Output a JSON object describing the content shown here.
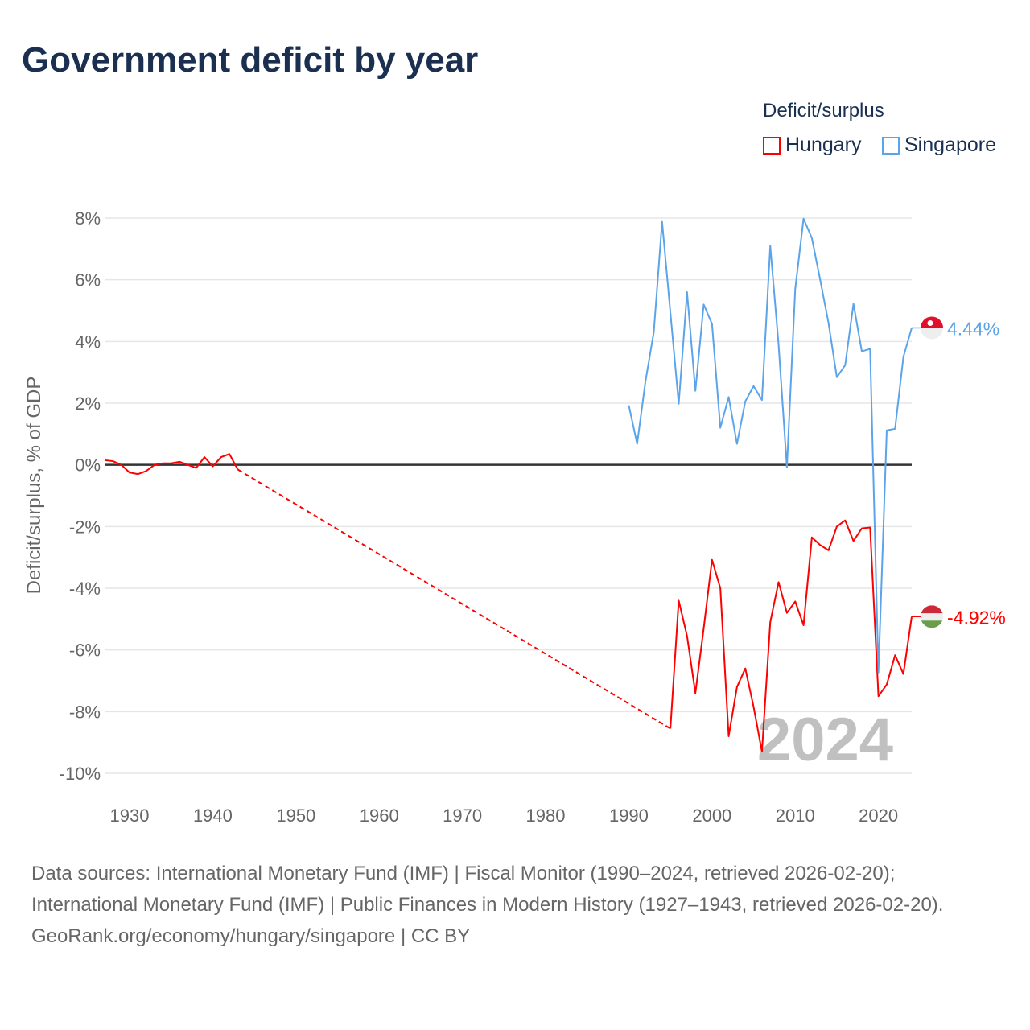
{
  "title": "Government deficit by year",
  "legend": {
    "title": "Deficit/surplus",
    "items": [
      {
        "name": "Hungary",
        "color": "#ff0000"
      },
      {
        "name": "Singapore",
        "color": "#5ba4ea"
      }
    ]
  },
  "chart_data": {
    "type": "line",
    "title": "Government deficit by year",
    "ylabel": "Deficit/surplus, % of GDP",
    "xlabel": "",
    "xlim": [
      1927,
      2024
    ],
    "ylim": [
      -10,
      8
    ],
    "xticks": [
      1930,
      1940,
      1950,
      1960,
      1970,
      1980,
      1990,
      2000,
      2010,
      2020
    ],
    "yticks": [
      8,
      6,
      4,
      2,
      0,
      -2,
      -4,
      -6,
      -8,
      -10
    ],
    "ytick_labels": [
      "8%",
      "6%",
      "4%",
      "2%",
      "0%",
      "-2%",
      "-4%",
      "-6%",
      "-8%",
      "-10%"
    ],
    "grid": true,
    "legend_position": "top-right",
    "year_watermark": "2024",
    "series": [
      {
        "name": "Hungary",
        "color": "#ff0000",
        "end_label": "-4.92%",
        "segments": [
          {
            "x": [
              1927,
              1928,
              1929,
              1930,
              1931,
              1932,
              1933,
              1934,
              1935,
              1936,
              1937,
              1938,
              1939,
              1940,
              1941,
              1942,
              1943
            ],
            "y": [
              0.15,
              0.12,
              0.0,
              -0.25,
              -0.3,
              -0.2,
              0.0,
              0.05,
              0.05,
              0.1,
              0.0,
              -0.1,
              0.25,
              -0.05,
              0.25,
              0.35,
              -0.15
            ]
          },
          {
            "x": [
              1995,
              1996,
              1997,
              1998,
              1999,
              2000,
              2001,
              2002,
              2003,
              2004,
              2005,
              2006,
              2007,
              2008,
              2009,
              2010,
              2011,
              2012,
              2013,
              2014,
              2015,
              2016,
              2017,
              2018,
              2019,
              2020,
              2021,
              2022,
              2023,
              2024
            ],
            "y": [
              -8.55,
              -4.4,
              -5.55,
              -7.4,
              -5.3,
              -3.08,
              -4.0,
              -8.8,
              -7.2,
              -6.6,
              -7.85,
              -9.3,
              -5.1,
              -3.8,
              -4.8,
              -4.43,
              -5.2,
              -2.35,
              -2.6,
              -2.77,
              -2.0,
              -1.8,
              -2.47,
              -2.06,
              -2.03,
              -7.5,
              -7.12,
              -6.17,
              -6.78,
              -4.92
            ]
          }
        ]
      },
      {
        "name": "Singapore",
        "color": "#5ba4ea",
        "end_label": "4.44%",
        "segments": [
          {
            "x": [
              1990,
              1991,
              1992,
              1993,
              1994,
              1995,
              1996,
              1997,
              1998,
              1999,
              2000,
              2001,
              2002,
              2003,
              2004,
              2005,
              2006,
              2007,
              2008,
              2009,
              2010,
              2011,
              2012,
              2013,
              2014,
              2015,
              2016,
              2017,
              2018,
              2019,
              2020,
              2021,
              2022,
              2023,
              2024
            ],
            "y": [
              1.93,
              0.68,
              2.7,
              4.3,
              7.88,
              4.93,
              1.98,
              5.6,
              2.4,
              5.2,
              4.57,
              1.2,
              2.2,
              0.68,
              2.06,
              2.55,
              2.1,
              7.1,
              3.9,
              -0.08,
              5.7,
              7.98,
              7.35,
              6.0,
              4.6,
              2.84,
              3.23,
              5.22,
              3.68,
              3.76,
              -6.73,
              1.12,
              1.17,
              3.5,
              4.44
            ]
          }
        ]
      }
    ]
  },
  "footer": {
    "sources": "Data sources: International Monetary Fund (IMF) | Fiscal Monitor (1990–2024, retrieved 2026-02-20); International Monetary Fund (IMF) | Public Finances in Modern History (1927–1943, retrieved 2026-02-20).",
    "credit": "GeoRank.org/economy/hungary/singapore | CC BY"
  }
}
